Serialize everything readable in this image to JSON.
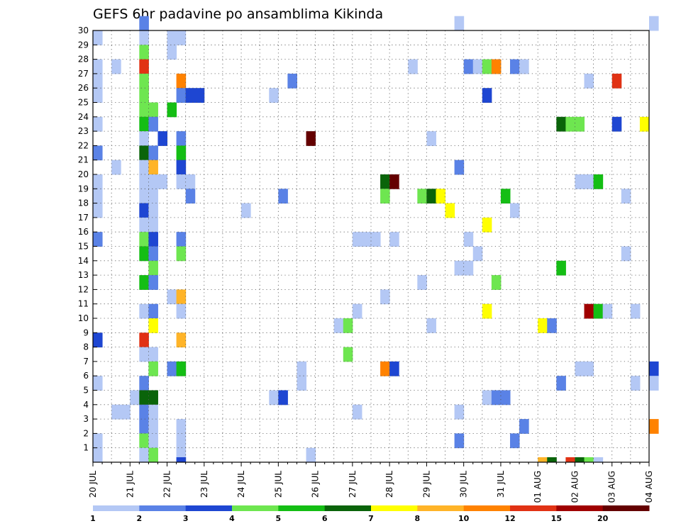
{
  "chart_data": {
    "type": "heatmap",
    "title": "GEFS 6hr padavine po ansamblima Kikinda",
    "x_tick_labels": [
      "20 JUL",
      "21 JUL",
      "22 JUL",
      "23 JUL",
      "24 JUL",
      "25 JUL",
      "26 JUL",
      "27 JUL",
      "28 JUL",
      "29 JUL",
      "30 JUL",
      "31 JUL",
      "01 AUG",
      "02 AUG",
      "03 AUG",
      "04 AUG"
    ],
    "y_tick_labels": [
      "1",
      "2",
      "3",
      "4",
      "5",
      "6",
      "7",
      "8",
      "9",
      "10",
      "11",
      "12",
      "13",
      "14",
      "15",
      "16",
      "17",
      "18",
      "19",
      "20",
      "21",
      "22",
      "23",
      "24",
      "25",
      "26",
      "27",
      "28",
      "29",
      "30"
    ],
    "x_range_steps": 60,
    "y_range_members": [
      0,
      30
    ],
    "grid": true,
    "legend": {
      "position": "bottom",
      "breaks": [
        "1",
        "2",
        "3",
        "4",
        "5",
        "6",
        "7",
        "8",
        "10",
        "12",
        "15",
        "20"
      ],
      "colors": [
        "#b4c8f5",
        "#5a82e6",
        "#1e46d2",
        "#6ee650",
        "#14be14",
        "#0a640a",
        "#ffff00",
        "#ffb428",
        "#ff8200",
        "#e13214",
        "#a00000",
        "#640000"
      ]
    },
    "cells": [
      [
        0,
        29,
        0
      ],
      [
        0,
        27,
        0
      ],
      [
        0,
        26,
        0
      ],
      [
        0,
        25,
        0
      ],
      [
        0,
        23,
        0
      ],
      [
        0,
        21,
        1
      ],
      [
        0,
        19,
        0
      ],
      [
        0,
        18,
        0
      ],
      [
        0,
        17,
        0
      ],
      [
        0,
        15,
        1
      ],
      [
        0,
        8,
        2
      ],
      [
        0,
        5,
        0
      ],
      [
        0,
        1,
        0
      ],
      [
        0,
        0,
        0
      ],
      [
        2,
        27,
        0
      ],
      [
        2,
        20,
        0
      ],
      [
        2,
        3,
        0
      ],
      [
        3,
        3,
        0
      ],
      [
        4,
        4,
        0
      ],
      [
        5,
        30,
        1
      ],
      [
        5,
        29,
        0
      ],
      [
        5,
        28,
        3
      ],
      [
        5,
        27,
        9
      ],
      [
        5,
        26,
        3
      ],
      [
        5,
        25,
        3
      ],
      [
        5,
        24,
        3
      ],
      [
        5,
        23,
        4
      ],
      [
        5,
        22,
        0
      ],
      [
        5,
        21,
        5
      ],
      [
        5,
        20,
        0
      ],
      [
        5,
        19,
        0
      ],
      [
        5,
        18,
        0
      ],
      [
        5,
        17,
        2
      ],
      [
        5,
        16,
        0
      ],
      [
        5,
        15,
        3
      ],
      [
        5,
        14,
        4
      ],
      [
        5,
        12,
        4
      ],
      [
        5,
        10,
        0
      ],
      [
        5,
        8,
        9
      ],
      [
        5,
        7,
        0
      ],
      [
        5,
        5,
        1
      ],
      [
        5,
        4,
        5
      ],
      [
        5,
        3,
        1
      ],
      [
        5,
        2,
        1
      ],
      [
        5,
        1,
        3
      ],
      [
        5,
        0,
        0
      ],
      [
        6,
        24,
        3
      ],
      [
        6,
        23,
        1
      ],
      [
        6,
        21,
        1
      ],
      [
        6,
        20,
        7
      ],
      [
        6,
        19,
        0
      ],
      [
        6,
        18,
        0
      ],
      [
        6,
        17,
        0
      ],
      [
        6,
        16,
        0
      ],
      [
        6,
        15,
        2
      ],
      [
        6,
        14,
        1
      ],
      [
        6,
        13,
        3
      ],
      [
        6,
        12,
        1
      ],
      [
        6,
        10,
        1
      ],
      [
        6,
        9,
        6
      ],
      [
        6,
        7,
        0
      ],
      [
        6,
        6,
        3
      ],
      [
        6,
        4,
        5
      ],
      [
        6,
        3,
        0
      ],
      [
        6,
        2,
        0
      ],
      [
        6,
        1,
        0
      ],
      [
        6,
        0,
        3
      ],
      [
        7,
        22,
        2
      ],
      [
        7,
        19,
        0
      ],
      [
        8,
        29,
        0
      ],
      [
        8,
        28,
        0
      ],
      [
        8,
        24,
        4
      ],
      [
        8,
        11,
        0
      ],
      [
        8,
        6,
        1
      ],
      [
        9,
        29,
        0
      ],
      [
        9,
        26,
        8
      ],
      [
        9,
        25,
        1
      ],
      [
        9,
        22,
        1
      ],
      [
        9,
        21,
        4
      ],
      [
        9,
        20,
        2
      ],
      [
        9,
        19,
        0
      ],
      [
        9,
        15,
        1
      ],
      [
        9,
        14,
        3
      ],
      [
        9,
        11,
        7
      ],
      [
        9,
        10,
        0
      ],
      [
        9,
        8,
        7
      ],
      [
        9,
        6,
        4
      ],
      [
        9,
        2,
        0
      ],
      [
        9,
        1,
        0
      ],
      [
        9,
        0,
        0
      ],
      [
        9,
        -1,
        2
      ],
      [
        10,
        25,
        2
      ],
      [
        10,
        19,
        0
      ],
      [
        10,
        18,
        1
      ],
      [
        11,
        25,
        2
      ],
      [
        16,
        17,
        0
      ],
      [
        19,
        25,
        0
      ],
      [
        19,
        4,
        0
      ],
      [
        20,
        18,
        1
      ],
      [
        20,
        4,
        2
      ],
      [
        21,
        26,
        1
      ],
      [
        22,
        6,
        0
      ],
      [
        22,
        5,
        0
      ],
      [
        23,
        22,
        11
      ],
      [
        23,
        0,
        0
      ],
      [
        26,
        9,
        0
      ],
      [
        27,
        9,
        3
      ],
      [
        27,
        7,
        3
      ],
      [
        28,
        15,
        0
      ],
      [
        28,
        10,
        0
      ],
      [
        28,
        3,
        0
      ],
      [
        29,
        15,
        0
      ],
      [
        30,
        15,
        0
      ],
      [
        31,
        19,
        5
      ],
      [
        31,
        18,
        3
      ],
      [
        31,
        11,
        0
      ],
      [
        31,
        6,
        8
      ],
      [
        32,
        19,
        11
      ],
      [
        32,
        15,
        0
      ],
      [
        32,
        6,
        2
      ],
      [
        34,
        27,
        0
      ],
      [
        35,
        18,
        3
      ],
      [
        35,
        12,
        0
      ],
      [
        36,
        22,
        0
      ],
      [
        36,
        18,
        5
      ],
      [
        36,
        9,
        0
      ],
      [
        37,
        18,
        6
      ],
      [
        38,
        17,
        6
      ],
      [
        39,
        30,
        0
      ],
      [
        39,
        20,
        1
      ],
      [
        39,
        13,
        0
      ],
      [
        39,
        3,
        0
      ],
      [
        39,
        1,
        1
      ],
      [
        40,
        27,
        1
      ],
      [
        40,
        15,
        0
      ],
      [
        40,
        13,
        0
      ],
      [
        41,
        27,
        0
      ],
      [
        41,
        14,
        0
      ],
      [
        42,
        27,
        3
      ],
      [
        42,
        25,
        2
      ],
      [
        42,
        16,
        6
      ],
      [
        42,
        10,
        6
      ],
      [
        42,
        4,
        0
      ],
      [
        43,
        27,
        8
      ],
      [
        43,
        12,
        3
      ],
      [
        43,
        4,
        1
      ],
      [
        44,
        18,
        4
      ],
      [
        44,
        4,
        1
      ],
      [
        45,
        27,
        1
      ],
      [
        45,
        17,
        0
      ],
      [
        45,
        1,
        1
      ],
      [
        46,
        27,
        0
      ],
      [
        46,
        2,
        1
      ],
      [
        48,
        9,
        6
      ],
      [
        48,
        -1,
        7
      ],
      [
        49,
        9,
        1
      ],
      [
        49,
        -1,
        5
      ],
      [
        50,
        23,
        5
      ],
      [
        50,
        13,
        4
      ],
      [
        50,
        5,
        1
      ],
      [
        51,
        23,
        3
      ],
      [
        51,
        -1,
        9
      ],
      [
        52,
        23,
        3
      ],
      [
        52,
        19,
        0
      ],
      [
        52,
        6,
        0
      ],
      [
        52,
        -1,
        5
      ],
      [
        53,
        26,
        0
      ],
      [
        53,
        19,
        0
      ],
      [
        53,
        10,
        10
      ],
      [
        53,
        6,
        0
      ],
      [
        53,
        -1,
        3
      ],
      [
        54,
        19,
        4
      ],
      [
        54,
        10,
        4
      ],
      [
        54,
        -1,
        0
      ],
      [
        55,
        10,
        0
      ],
      [
        56,
        26,
        9
      ],
      [
        56,
        23,
        2
      ],
      [
        57,
        18,
        0
      ],
      [
        57,
        14,
        0
      ],
      [
        58,
        10,
        0
      ],
      [
        58,
        5,
        0
      ],
      [
        59,
        23,
        6
      ],
      [
        60,
        30,
        0
      ],
      [
        60,
        6,
        2
      ],
      [
        60,
        5,
        0
      ],
      [
        60,
        2,
        8
      ]
    ]
  }
}
